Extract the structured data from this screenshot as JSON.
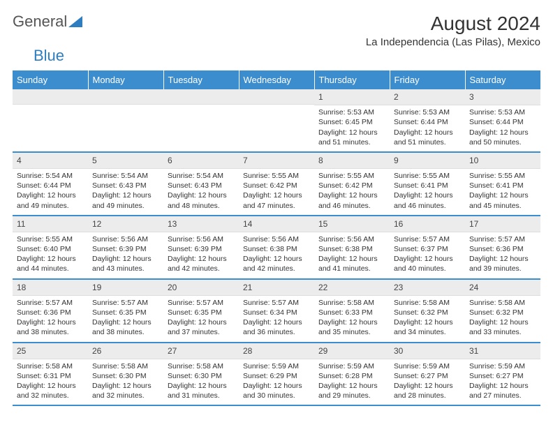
{
  "brand": {
    "part1": "General",
    "part2": "Blue"
  },
  "title": "August 2024",
  "location": "La Independencia (Las Pilas), Mexico",
  "columns": [
    "Sunday",
    "Monday",
    "Tuesday",
    "Wednesday",
    "Thursday",
    "Friday",
    "Saturday"
  ],
  "colors": {
    "header_bg": "#3c8dce",
    "daynum_bg": "#ececec",
    "border": "#3c8dce"
  },
  "weeks": [
    [
      null,
      null,
      null,
      null,
      {
        "n": "1",
        "sunrise": "Sunrise: 5:53 AM",
        "sunset": "Sunset: 6:45 PM",
        "daylight": "Daylight: 12 hours and 51 minutes."
      },
      {
        "n": "2",
        "sunrise": "Sunrise: 5:53 AM",
        "sunset": "Sunset: 6:44 PM",
        "daylight": "Daylight: 12 hours and 51 minutes."
      },
      {
        "n": "3",
        "sunrise": "Sunrise: 5:53 AM",
        "sunset": "Sunset: 6:44 PM",
        "daylight": "Daylight: 12 hours and 50 minutes."
      }
    ],
    [
      {
        "n": "4",
        "sunrise": "Sunrise: 5:54 AM",
        "sunset": "Sunset: 6:44 PM",
        "daylight": "Daylight: 12 hours and 49 minutes."
      },
      {
        "n": "5",
        "sunrise": "Sunrise: 5:54 AM",
        "sunset": "Sunset: 6:43 PM",
        "daylight": "Daylight: 12 hours and 49 minutes."
      },
      {
        "n": "6",
        "sunrise": "Sunrise: 5:54 AM",
        "sunset": "Sunset: 6:43 PM",
        "daylight": "Daylight: 12 hours and 48 minutes."
      },
      {
        "n": "7",
        "sunrise": "Sunrise: 5:55 AM",
        "sunset": "Sunset: 6:42 PM",
        "daylight": "Daylight: 12 hours and 47 minutes."
      },
      {
        "n": "8",
        "sunrise": "Sunrise: 5:55 AM",
        "sunset": "Sunset: 6:42 PM",
        "daylight": "Daylight: 12 hours and 46 minutes."
      },
      {
        "n": "9",
        "sunrise": "Sunrise: 5:55 AM",
        "sunset": "Sunset: 6:41 PM",
        "daylight": "Daylight: 12 hours and 46 minutes."
      },
      {
        "n": "10",
        "sunrise": "Sunrise: 5:55 AM",
        "sunset": "Sunset: 6:41 PM",
        "daylight": "Daylight: 12 hours and 45 minutes."
      }
    ],
    [
      {
        "n": "11",
        "sunrise": "Sunrise: 5:55 AM",
        "sunset": "Sunset: 6:40 PM",
        "daylight": "Daylight: 12 hours and 44 minutes."
      },
      {
        "n": "12",
        "sunrise": "Sunrise: 5:56 AM",
        "sunset": "Sunset: 6:39 PM",
        "daylight": "Daylight: 12 hours and 43 minutes."
      },
      {
        "n": "13",
        "sunrise": "Sunrise: 5:56 AM",
        "sunset": "Sunset: 6:39 PM",
        "daylight": "Daylight: 12 hours and 42 minutes."
      },
      {
        "n": "14",
        "sunrise": "Sunrise: 5:56 AM",
        "sunset": "Sunset: 6:38 PM",
        "daylight": "Daylight: 12 hours and 42 minutes."
      },
      {
        "n": "15",
        "sunrise": "Sunrise: 5:56 AM",
        "sunset": "Sunset: 6:38 PM",
        "daylight": "Daylight: 12 hours and 41 minutes."
      },
      {
        "n": "16",
        "sunrise": "Sunrise: 5:57 AM",
        "sunset": "Sunset: 6:37 PM",
        "daylight": "Daylight: 12 hours and 40 minutes."
      },
      {
        "n": "17",
        "sunrise": "Sunrise: 5:57 AM",
        "sunset": "Sunset: 6:36 PM",
        "daylight": "Daylight: 12 hours and 39 minutes."
      }
    ],
    [
      {
        "n": "18",
        "sunrise": "Sunrise: 5:57 AM",
        "sunset": "Sunset: 6:36 PM",
        "daylight": "Daylight: 12 hours and 38 minutes."
      },
      {
        "n": "19",
        "sunrise": "Sunrise: 5:57 AM",
        "sunset": "Sunset: 6:35 PM",
        "daylight": "Daylight: 12 hours and 38 minutes."
      },
      {
        "n": "20",
        "sunrise": "Sunrise: 5:57 AM",
        "sunset": "Sunset: 6:35 PM",
        "daylight": "Daylight: 12 hours and 37 minutes."
      },
      {
        "n": "21",
        "sunrise": "Sunrise: 5:57 AM",
        "sunset": "Sunset: 6:34 PM",
        "daylight": "Daylight: 12 hours and 36 minutes."
      },
      {
        "n": "22",
        "sunrise": "Sunrise: 5:58 AM",
        "sunset": "Sunset: 6:33 PM",
        "daylight": "Daylight: 12 hours and 35 minutes."
      },
      {
        "n": "23",
        "sunrise": "Sunrise: 5:58 AM",
        "sunset": "Sunset: 6:32 PM",
        "daylight": "Daylight: 12 hours and 34 minutes."
      },
      {
        "n": "24",
        "sunrise": "Sunrise: 5:58 AM",
        "sunset": "Sunset: 6:32 PM",
        "daylight": "Daylight: 12 hours and 33 minutes."
      }
    ],
    [
      {
        "n": "25",
        "sunrise": "Sunrise: 5:58 AM",
        "sunset": "Sunset: 6:31 PM",
        "daylight": "Daylight: 12 hours and 32 minutes."
      },
      {
        "n": "26",
        "sunrise": "Sunrise: 5:58 AM",
        "sunset": "Sunset: 6:30 PM",
        "daylight": "Daylight: 12 hours and 32 minutes."
      },
      {
        "n": "27",
        "sunrise": "Sunrise: 5:58 AM",
        "sunset": "Sunset: 6:30 PM",
        "daylight": "Daylight: 12 hours and 31 minutes."
      },
      {
        "n": "28",
        "sunrise": "Sunrise: 5:59 AM",
        "sunset": "Sunset: 6:29 PM",
        "daylight": "Daylight: 12 hours and 30 minutes."
      },
      {
        "n": "29",
        "sunrise": "Sunrise: 5:59 AM",
        "sunset": "Sunset: 6:28 PM",
        "daylight": "Daylight: 12 hours and 29 minutes."
      },
      {
        "n": "30",
        "sunrise": "Sunrise: 5:59 AM",
        "sunset": "Sunset: 6:27 PM",
        "daylight": "Daylight: 12 hours and 28 minutes."
      },
      {
        "n": "31",
        "sunrise": "Sunrise: 5:59 AM",
        "sunset": "Sunset: 6:27 PM",
        "daylight": "Daylight: 12 hours and 27 minutes."
      }
    ]
  ]
}
